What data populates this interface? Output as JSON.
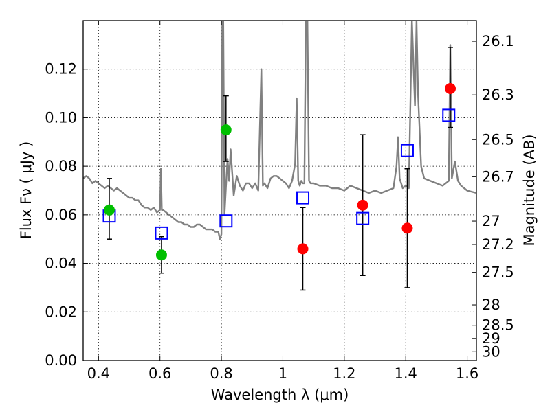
{
  "chart_data": {
    "type": "scatter",
    "xlabel": "Wavelength  λ (μm)",
    "ylabel": "Flux  Fν  ( μJy )",
    "ylabel_right": "Magnitude (AB)",
    "xlim": [
      0.35,
      1.63
    ],
    "ylim": [
      0.0,
      0.14
    ],
    "grid": true,
    "x_ticks": [
      0.4,
      0.6,
      0.8,
      1.0,
      1.2,
      1.4,
      1.6
    ],
    "x_tick_labels": [
      "0.4",
      "0.6",
      "0.8",
      "1",
      "1.2",
      "1.4",
      "1.6"
    ],
    "y_ticks": [
      0.0,
      0.02,
      0.04,
      0.06,
      0.08,
      0.1,
      0.12
    ],
    "y_tick_labels": [
      "0.00",
      "0.02",
      "0.04",
      "0.06",
      "0.08",
      "0.10",
      "0.12"
    ],
    "right_ticks": [
      {
        "label": "26.1",
        "flux": 0.1315
      },
      {
        "label": "26.3",
        "flux": 0.1094
      },
      {
        "label": "26.5",
        "flux": 0.091
      },
      {
        "label": "26.7",
        "flux": 0.0757
      },
      {
        "label": "27",
        "flux": 0.0574
      },
      {
        "label": "27.2",
        "flux": 0.0478
      },
      {
        "label": "27.5",
        "flux": 0.0363
      },
      {
        "label": "28",
        "flux": 0.0229
      },
      {
        "label": "28.5",
        "flux": 0.0145
      },
      {
        "label": "29",
        "flux": 0.0091
      },
      {
        "label": "30",
        "flux": 0.0036
      }
    ],
    "colors": {
      "spectrum": "#808080",
      "green": "#00bf00",
      "red": "#ff0000",
      "model": "#0000ff",
      "errorbar": "#000000"
    },
    "spectrum": {
      "name": "",
      "x": [
        0.35,
        0.36,
        0.37,
        0.38,
        0.39,
        0.4,
        0.41,
        0.42,
        0.43,
        0.44,
        0.45,
        0.46,
        0.47,
        0.48,
        0.49,
        0.5,
        0.51,
        0.52,
        0.53,
        0.54,
        0.55,
        0.56,
        0.57,
        0.58,
        0.59,
        0.6,
        0.603,
        0.606,
        0.61,
        0.62,
        0.63,
        0.64,
        0.65,
        0.66,
        0.67,
        0.68,
        0.69,
        0.7,
        0.71,
        0.72,
        0.73,
        0.74,
        0.75,
        0.76,
        0.77,
        0.78,
        0.79,
        0.795,
        0.8,
        0.803,
        0.806,
        0.81,
        0.815,
        0.82,
        0.825,
        0.83,
        0.84,
        0.85,
        0.86,
        0.87,
        0.88,
        0.89,
        0.9,
        0.91,
        0.92,
        0.93,
        0.935,
        0.94,
        0.95,
        0.96,
        0.97,
        0.98,
        0.99,
        1.0,
        1.01,
        1.02,
        1.03,
        1.04,
        1.045,
        1.05,
        1.055,
        1.06,
        1.065,
        1.07,
        1.075,
        1.08,
        1.085,
        1.09,
        1.1,
        1.12,
        1.14,
        1.16,
        1.18,
        1.2,
        1.22,
        1.24,
        1.26,
        1.28,
        1.3,
        1.32,
        1.34,
        1.36,
        1.37,
        1.375,
        1.38,
        1.39,
        1.4,
        1.41,
        1.42,
        1.43,
        1.435,
        1.44,
        1.45,
        1.46,
        1.48,
        1.5,
        1.52,
        1.54,
        1.545,
        1.55,
        1.56,
        1.57,
        1.58,
        1.6,
        1.63
      ],
      "y": [
        0.075,
        0.076,
        0.075,
        0.073,
        0.074,
        0.073,
        0.072,
        0.071,
        0.072,
        0.071,
        0.07,
        0.071,
        0.07,
        0.069,
        0.068,
        0.067,
        0.067,
        0.066,
        0.066,
        0.064,
        0.063,
        0.063,
        0.062,
        0.063,
        0.061,
        0.062,
        0.079,
        0.062,
        0.062,
        0.061,
        0.06,
        0.059,
        0.058,
        0.057,
        0.057,
        0.056,
        0.056,
        0.055,
        0.055,
        0.056,
        0.056,
        0.055,
        0.054,
        0.054,
        0.054,
        0.053,
        0.053,
        0.05,
        0.052,
        0.14,
        0.14,
        0.06,
        0.072,
        0.083,
        0.074,
        0.087,
        0.068,
        0.076,
        0.072,
        0.07,
        0.073,
        0.073,
        0.071,
        0.073,
        0.07,
        0.12,
        0.072,
        0.073,
        0.071,
        0.075,
        0.076,
        0.076,
        0.075,
        0.074,
        0.073,
        0.071,
        0.074,
        0.081,
        0.108,
        0.074,
        0.072,
        0.074,
        0.073,
        0.073,
        0.14,
        0.14,
        0.074,
        0.073,
        0.073,
        0.072,
        0.072,
        0.071,
        0.071,
        0.07,
        0.072,
        0.071,
        0.07,
        0.069,
        0.07,
        0.069,
        0.07,
        0.071,
        0.08,
        0.092,
        0.075,
        0.071,
        0.072,
        0.071,
        0.14,
        0.105,
        0.14,
        0.11,
        0.08,
        0.075,
        0.074,
        0.073,
        0.072,
        0.074,
        0.13,
        0.075,
        0.082,
        0.074,
        0.072,
        0.07,
        0.069
      ]
    },
    "green_points": [
      {
        "x": 0.435,
        "y": 0.062,
        "err_low": 0.05,
        "err_high": 0.075
      },
      {
        "x": 0.605,
        "y": 0.0435,
        "err_low": 0.036,
        "err_high": 0.051
      },
      {
        "x": 0.815,
        "y": 0.095,
        "err_low": 0.082,
        "err_high": 0.109
      }
    ],
    "red_points": [
      {
        "x": 1.065,
        "y": 0.046,
        "err_low": 0.029,
        "err_high": 0.063
      },
      {
        "x": 1.26,
        "y": 0.064,
        "err_low": 0.035,
        "err_high": 0.093
      },
      {
        "x": 1.405,
        "y": 0.0545,
        "err_low": 0.03,
        "err_high": 0.079
      },
      {
        "x": 1.545,
        "y": 0.112,
        "err_low": 0.096,
        "err_high": 0.129
      }
    ],
    "model_points": [
      {
        "x": 0.435,
        "y": 0.0595
      },
      {
        "x": 0.605,
        "y": 0.0525
      },
      {
        "x": 0.815,
        "y": 0.0575
      },
      {
        "x": 1.065,
        "y": 0.067
      },
      {
        "x": 1.26,
        "y": 0.0585
      },
      {
        "x": 1.405,
        "y": 0.0865
      },
      {
        "x": 1.54,
        "y": 0.101
      }
    ]
  }
}
